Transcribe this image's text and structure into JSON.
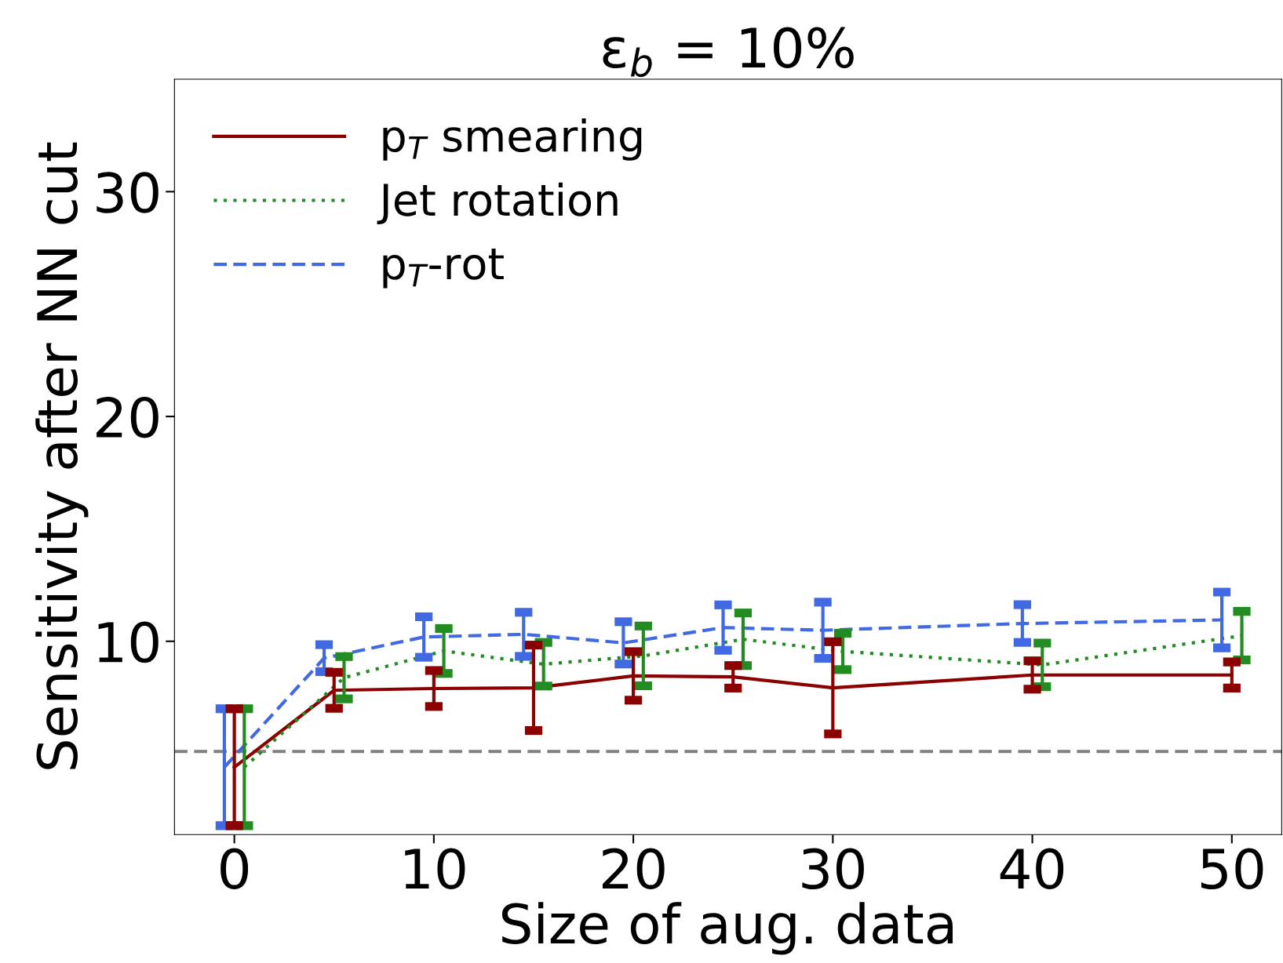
{
  "chart_data": {
    "type": "line",
    "title": "ε$_{b}$ = 10%",
    "xlabel": "Size of aug. data",
    "ylabel": "Sensitivity after NN cut",
    "series": [
      {
        "name": "p$_{T}$ smearing",
        "color": "#8b0000",
        "line_style": "solid",
        "x": [
          0,
          5,
          10,
          15,
          20,
          25,
          30,
          40,
          50
        ],
        "values": [
          4.4,
          7.82,
          7.9,
          7.93,
          8.46,
          8.42,
          7.93,
          8.5,
          8.5
        ],
        "errors": [
          2.6,
          0.8,
          0.8,
          1.9,
          1.08,
          0.5,
          2.05,
          0.63,
          0.58
        ]
      },
      {
        "name": "Jet rotation",
        "color": "#228b22",
        "line_style": "dotted",
        "x": [
          0.5,
          5.5,
          10.5,
          15.5,
          20.5,
          25.5,
          30.5,
          40.5,
          50.5
        ],
        "values": [
          4.4,
          8.38,
          9.57,
          8.98,
          9.35,
          10.09,
          9.55,
          8.95,
          10.25
        ],
        "errors": [
          2.6,
          0.94,
          1.0,
          0.97,
          1.33,
          1.17,
          0.81,
          0.97,
          1.08
        ]
      },
      {
        "name": "p$_{T}$-rot",
        "color": "#4169e1",
        "line_style": "dashed",
        "x": [
          -0.5,
          4.5,
          9.5,
          14.5,
          19.5,
          24.5,
          29.5,
          39.5,
          49.5
        ],
        "values": [
          4.4,
          9.25,
          10.19,
          10.31,
          9.93,
          10.61,
          10.49,
          10.79,
          10.95
        ],
        "errors": [
          2.6,
          0.6,
          0.9,
          0.98,
          0.94,
          1.01,
          1.25,
          0.84,
          1.24
        ]
      }
    ],
    "ref_lines": [
      {
        "axis": "y",
        "value": 5.1,
        "color": "#808080",
        "line_style": "dashed"
      }
    ],
    "xlim": [
      -3,
      52.5
    ],
    "xticks": [
      0,
      10,
      20,
      30,
      40,
      50
    ],
    "ylim": [
      1.4,
      35
    ],
    "yticks": [
      10,
      20,
      30
    ],
    "grid": false,
    "legend": "top left",
    "marker": "none"
  }
}
